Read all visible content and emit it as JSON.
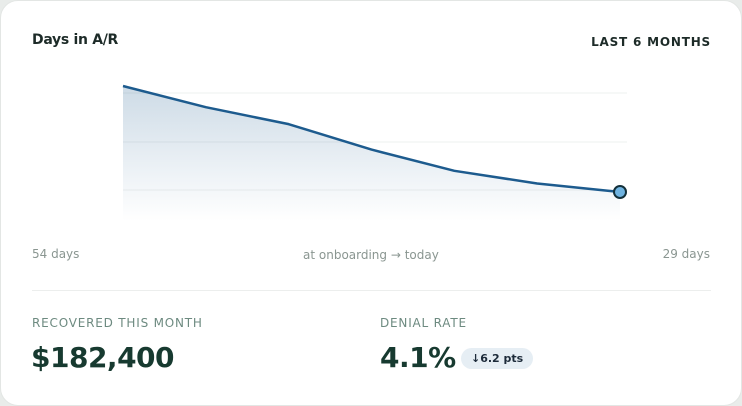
{
  "chart_data": {
    "type": "line",
    "title": "Days in A/R",
    "subtitle": "LAST 6 MONTHS",
    "values": [
      54,
      49,
      45,
      39,
      34,
      31,
      29
    ],
    "color": "#1d5b8e",
    "start_label": "54 days",
    "middle_label": "at onboarding → today",
    "end_label": "29 days"
  },
  "metrics": [
    {
      "label": "RECOVERED THIS MONTH",
      "value": "$182,400"
    },
    {
      "label": "DENIAL RATE",
      "value": "4.1%",
      "delta": "↓6.2 pts"
    }
  ]
}
